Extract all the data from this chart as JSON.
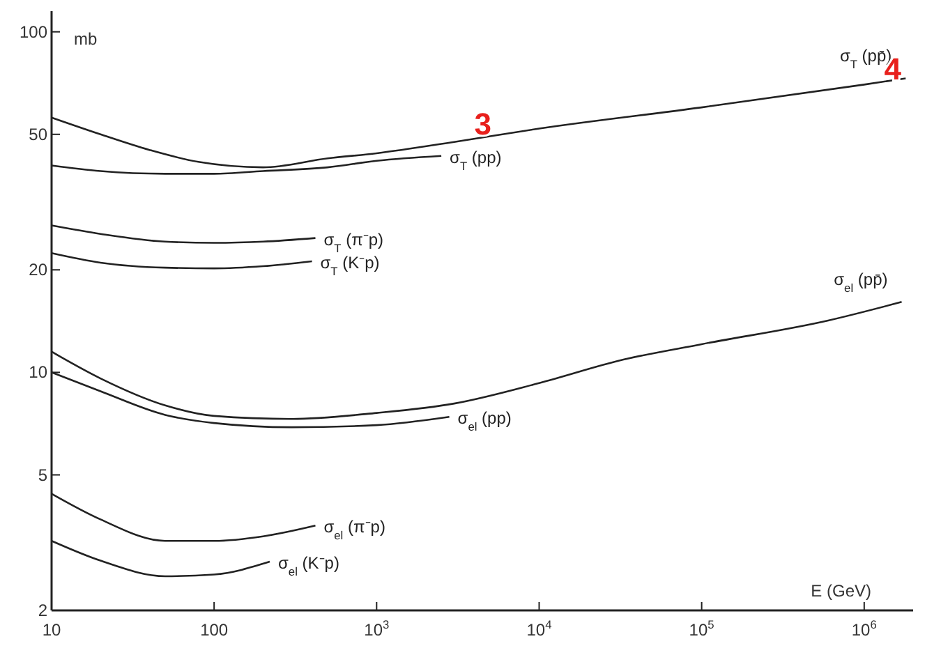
{
  "chart_data": {
    "type": "line",
    "ylabel": "mb",
    "xlabel": "E (GeV)",
    "log": "xy",
    "xlim": [
      10,
      2000000
    ],
    "ylim": [
      2,
      115
    ],
    "xticks": [
      10,
      100,
      {
        "value": 1000,
        "label": "10$^{3}$"
      },
      {
        "value": 10000,
        "label": "10$^{4}$"
      },
      {
        "value": 100000,
        "label": "10$^{5}$"
      },
      {
        "value": 1000000,
        "label": "10$^{6}$"
      }
    ],
    "yticks": [
      2,
      5,
      10,
      20,
      50,
      100
    ],
    "grid": false,
    "marker": "none",
    "line_style": "solid",
    "series": [
      {
        "name": "σ$_{T}$ (pp̄)",
        "color": "#222222",
        "x": [
          10,
          20,
          40,
          80,
          200,
          500,
          1000,
          3000,
          10000,
          100000,
          1000000,
          1800000
        ],
        "values": [
          56,
          50,
          45,
          41.5,
          40,
          42.5,
          44,
          47.5,
          52,
          60,
          70,
          73
        ]
      },
      {
        "name": "σ$_{T}$ (pp)",
        "color": "#222222",
        "x": [
          10,
          20,
          50,
          100,
          200,
          500,
          1000,
          2500
        ],
        "values": [
          40.5,
          39,
          38.3,
          38.3,
          39,
          40,
          41.8,
          43.2
        ]
      },
      {
        "name": "σ$_{T}$ (π⁻p)",
        "color": "#222222",
        "x": [
          10,
          20,
          50,
          100,
          200,
          420
        ],
        "values": [
          27,
          25.5,
          24.2,
          24,
          24.2,
          24.8
        ]
      },
      {
        "name": "σ$_{T}$ (K⁻p)",
        "color": "#222222",
        "x": [
          10,
          20,
          50,
          100,
          200,
          400
        ],
        "values": [
          22.4,
          21,
          20.3,
          20.2,
          20.5,
          21.2
        ]
      },
      {
        "name": "σ$_{el}$ (pp̄)",
        "color": "#222222",
        "x": [
          10,
          20,
          50,
          100,
          300,
          1000,
          3000,
          10000,
          33000,
          100000,
          600000,
          1700000
        ],
        "values": [
          11.5,
          9.6,
          8,
          7.45,
          7.3,
          7.6,
          8.1,
          9.3,
          10.9,
          12.1,
          14.2,
          16.1
        ]
      },
      {
        "name": "σ$_{el}$ (pp)",
        "color": "#222222",
        "x": [
          10,
          20,
          50,
          100,
          300,
          1000,
          2800
        ],
        "values": [
          10,
          8.8,
          7.5,
          7.1,
          6.9,
          7,
          7.4
        ]
      },
      {
        "name": "σ$_{el}$ (π⁻p)",
        "color": "#222222",
        "x": [
          10,
          20,
          50,
          100,
          200,
          420
        ],
        "values": [
          4.4,
          3.7,
          3.2,
          3.2,
          3.3,
          3.55
        ]
      },
      {
        "name": "σ$_{el}$ (K⁻p)",
        "color": "#222222",
        "x": [
          10,
          20,
          50,
          100,
          220
        ],
        "values": [
          3.2,
          2.8,
          2.52,
          2.55,
          2.78
        ]
      }
    ],
    "annotations": [
      {
        "text": "3",
        "x": 4500,
        "y": 49
      },
      {
        "text": "4",
        "x": 1500000,
        "y": 71
      }
    ]
  }
}
